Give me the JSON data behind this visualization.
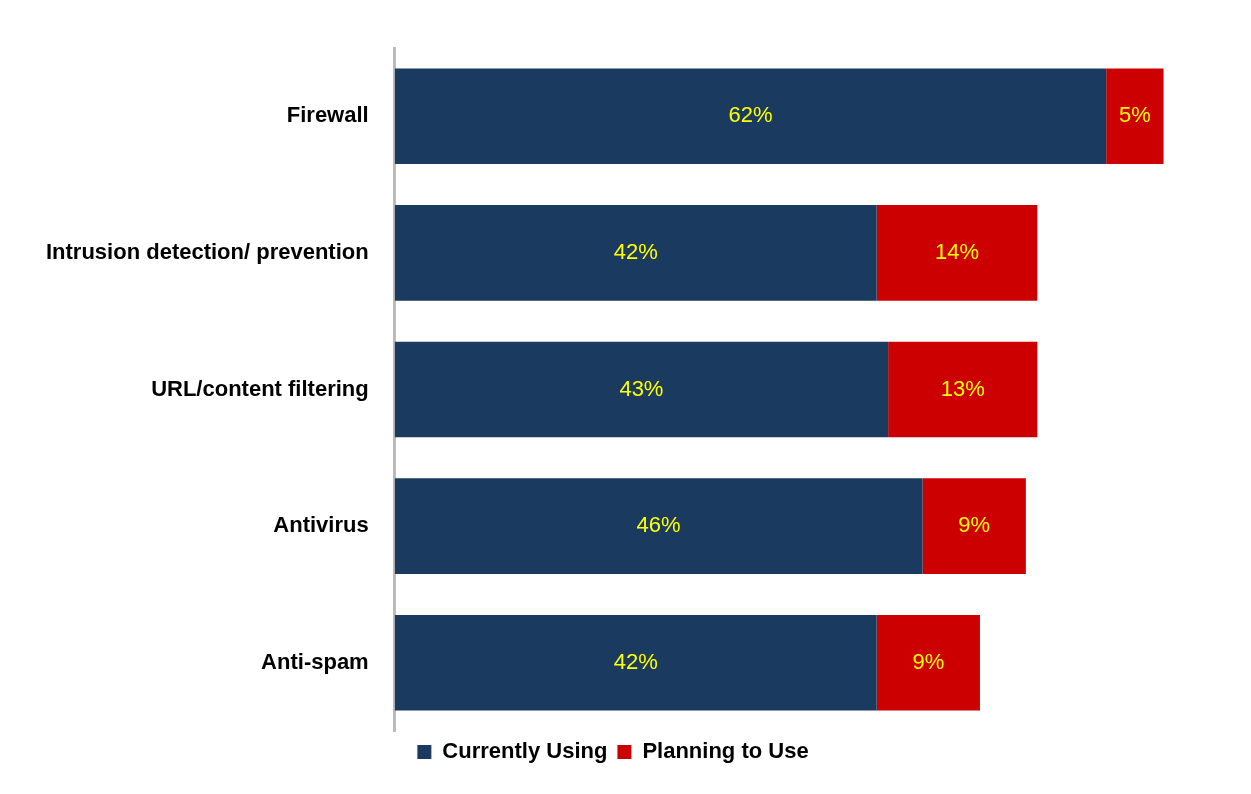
{
  "chart_data": {
    "type": "bar",
    "orientation": "horizontal",
    "stacked": true,
    "categories": [
      "Firewall",
      "Intrusion detection/ prevention",
      "URL/content filtering",
      "Antivirus",
      "Anti-spam"
    ],
    "series": [
      {
        "name": "Currently Using",
        "color": "#1b3a60",
        "values": [
          62,
          42,
          43,
          46,
          42
        ],
        "value_labels": [
          "62%",
          "42%",
          "43%",
          "46%",
          "42%"
        ]
      },
      {
        "name": "Planning to Use",
        "color": "#cc0000",
        "values": [
          5,
          14,
          13,
          9,
          9
        ],
        "value_labels": [
          "5%",
          "14%",
          "13%",
          "9%",
          "9%"
        ]
      }
    ],
    "legend": "bottom",
    "grid": false
  }
}
